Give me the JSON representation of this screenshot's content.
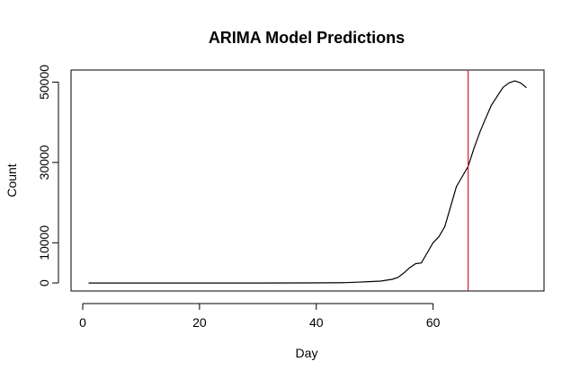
{
  "chart_data": {
    "type": "line",
    "title": "ARIMA Model Predictions",
    "xlabel": "Day",
    "ylabel": "Count",
    "xlim": [
      -2,
      79
    ],
    "ylim": [
      -2000,
      53000
    ],
    "x_ticks": [
      0,
      20,
      40,
      60
    ],
    "y_ticks": [
      0,
      10000,
      30000,
      50000
    ],
    "grid": false,
    "legend": "none",
    "series": [
      {
        "color": "#000000",
        "points": [
          [
            1,
            0
          ],
          [
            10,
            0
          ],
          [
            20,
            0
          ],
          [
            30,
            0
          ],
          [
            38,
            10
          ],
          [
            42,
            40
          ],
          [
            45,
            90
          ],
          [
            47,
            200
          ],
          [
            49,
            320
          ],
          [
            51,
            450
          ],
          [
            53,
            900
          ],
          [
            54,
            1400
          ],
          [
            55,
            2500
          ],
          [
            56,
            3800
          ],
          [
            57,
            4800
          ],
          [
            58,
            5000
          ],
          [
            59,
            7500
          ],
          [
            60,
            10000
          ],
          [
            61,
            11500
          ],
          [
            62,
            14000
          ],
          [
            63,
            19000
          ],
          [
            64,
            24000
          ],
          [
            65,
            26500
          ],
          [
            66,
            29000
          ],
          [
            67,
            33500
          ],
          [
            68,
            37500
          ],
          [
            69,
            41000
          ],
          [
            70,
            44300
          ],
          [
            71,
            46500
          ],
          [
            72,
            48700
          ],
          [
            73,
            49800
          ],
          [
            74,
            50300
          ],
          [
            75,
            49800
          ],
          [
            76,
            48600
          ]
        ]
      }
    ],
    "vline": {
      "x": 66,
      "color": "#dc143c"
    }
  }
}
